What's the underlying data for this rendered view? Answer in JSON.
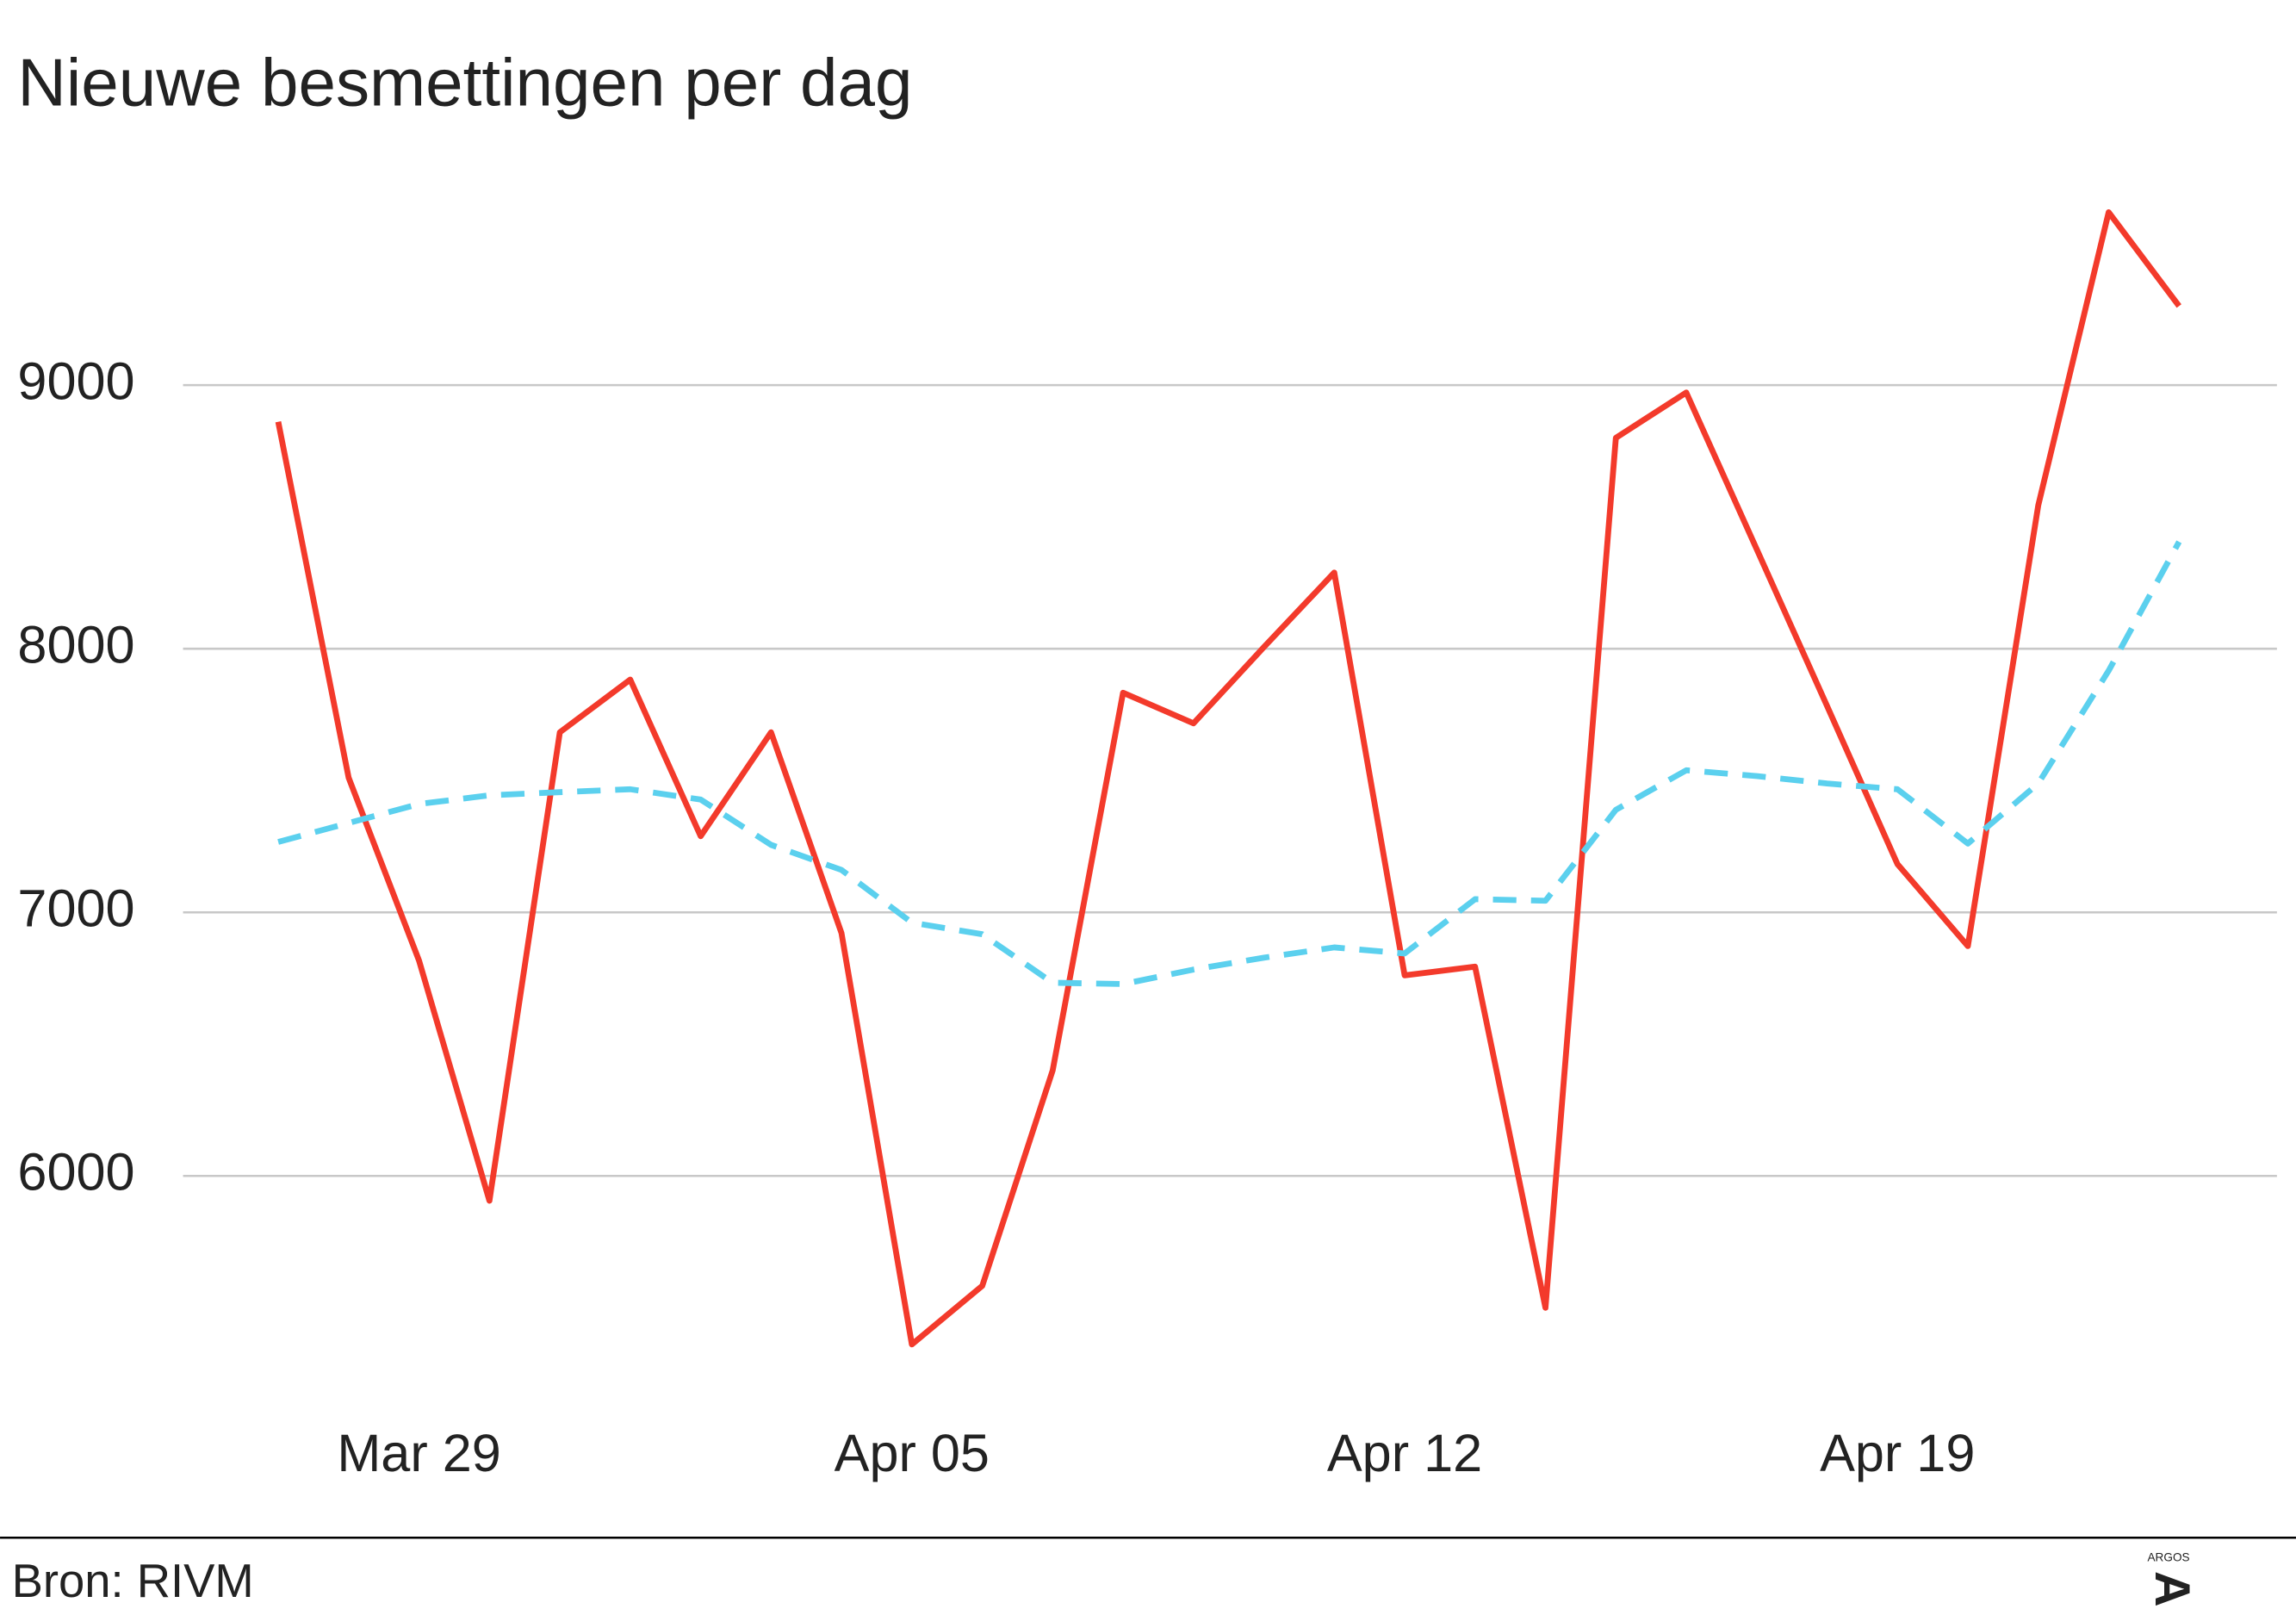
{
  "chart_data": {
    "type": "line",
    "title": "Nieuwe besmettingen per dag",
    "source": "Bron: RIVM",
    "logo": "ARGOS",
    "categories": [
      null,
      null,
      "Mar 29",
      null,
      null,
      null,
      null,
      null,
      null,
      "Apr 05",
      null,
      null,
      null,
      null,
      null,
      null,
      "Apr 12",
      null,
      null,
      null,
      null,
      null,
      null,
      "Apr 19",
      null,
      null,
      null,
      null
    ],
    "series": [
      {
        "color": "#f33a2b",
        "dashed": false,
        "values": [
          8861,
          7511,
          6817,
          5906,
          7683,
          7883,
          7289,
          7683,
          6922,
          5361,
          5583,
          6400,
          7833,
          7717,
          8006,
          8289,
          6761,
          6794,
          5500,
          8800,
          8972,
          8378,
          7783,
          7183,
          6872,
          8544,
          9656,
          9300
        ]
      },
      {
        "color": "#5bd0ee",
        "dashed": true,
        "values": [
          7267,
          7339,
          7411,
          7444,
          7456,
          7467,
          7428,
          7256,
          7161,
          6961,
          6917,
          6733,
          6728,
          6783,
          6828,
          6867,
          6844,
          7050,
          7044,
          7389,
          7539,
          7517,
          7489,
          7467,
          7261,
          7489,
          7917,
          8406
        ]
      }
    ],
    "ylim": [
      5250,
      9700
    ],
    "yticks": [
      6000,
      7000,
      8000,
      9000
    ],
    "grid": true
  }
}
